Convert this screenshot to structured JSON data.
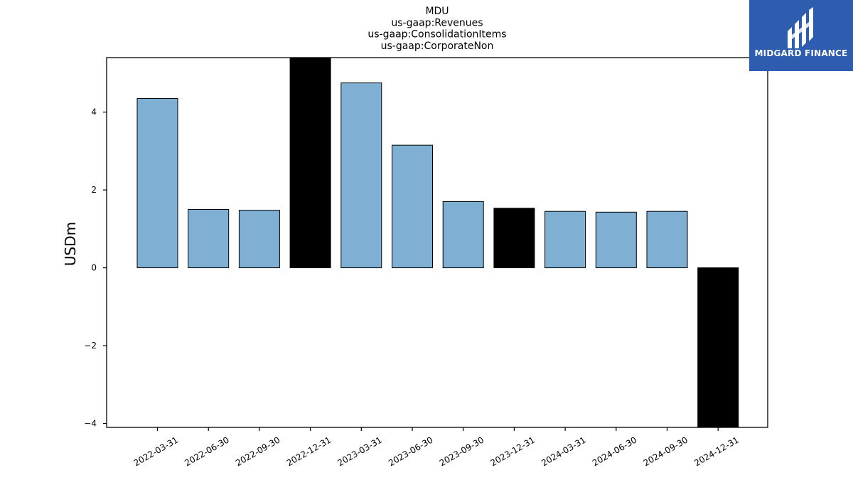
{
  "chart_data": {
    "type": "bar",
    "title_lines": [
      "MDU",
      "us-gaap:Revenues",
      "us-gaap:ConsolidationItems",
      "us-gaap:CorporateNon"
    ],
    "xlabel": "",
    "ylabel": "USDm",
    "categories": [
      "2022-03-31",
      "2022-06-30",
      "2022-09-30",
      "2022-12-31",
      "2023-03-31",
      "2023-06-30",
      "2023-09-30",
      "2023-12-31",
      "2024-03-31",
      "2024-06-30",
      "2024-09-30",
      "2024-12-31"
    ],
    "values": [
      4.35,
      1.5,
      1.48,
      5.4,
      4.75,
      3.15,
      1.7,
      1.53,
      1.45,
      1.43,
      1.45,
      -4.1
    ],
    "bar_colors": [
      "#7fb0d4",
      "#7fb0d4",
      "#7fb0d4",
      "#000000",
      "#7fb0d4",
      "#7fb0d4",
      "#7fb0d4",
      "#000000",
      "#7fb0d4",
      "#7fb0d4",
      "#7fb0d4",
      "#000000"
    ],
    "ylim": [
      -4.1,
      5.4
    ],
    "yticks": [
      -4,
      -2,
      0,
      2,
      4
    ],
    "ytick_labels": [
      "−4",
      "−2",
      "0",
      "2",
      "4"
    ],
    "grid": false,
    "legend": "none"
  },
  "logo": {
    "text": "MIDGARD FINANCE",
    "background": "#2e5cae"
  }
}
